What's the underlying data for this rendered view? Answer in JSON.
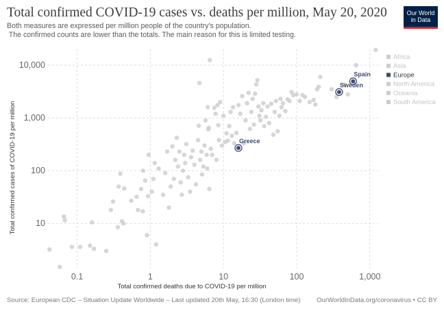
{
  "header": {
    "title": "Total confirmed COVID-19 cases vs. deaths per million, May 20, 2020",
    "subtitle": "Both measures are expressed per million people of the country's population.\n The confirmed counts are lower than the totals. The main reason for this is limited testing.",
    "logo_line1": "Our World",
    "logo_line2": "in Data"
  },
  "footer": {
    "source": "Source: European CDC – Situation Update Worldwide – Last updated 20th May, 16:30 (London time)",
    "credit": "OurWorldInData.org/coronavirus • CC BY"
  },
  "colors": {
    "point": "#cfcfcf",
    "highlight": "#3e4a6e",
    "legend_dim": "#cccccc",
    "grid": "#dddddd"
  },
  "chart_data": {
    "type": "scatter",
    "title": "Total confirmed COVID-19 cases vs. deaths per million, May 20, 2020",
    "xlabel": "Total confirmed deaths due to COVID-19 per million",
    "ylabel": "Total confirmed cases of COVID-19 per million",
    "xscale": "log",
    "yscale": "log",
    "xlim": [
      0.04,
      1300
    ],
    "ylim": [
      1.4,
      20000
    ],
    "x_ticks": [
      0.1,
      1,
      10,
      100,
      1000
    ],
    "x_tick_labels": [
      "0.1",
      "1",
      "10",
      "100",
      "1,000"
    ],
    "y_ticks": [
      10,
      100,
      1000,
      10000
    ],
    "y_tick_labels": [
      "10",
      "100",
      "1,000",
      "10,000"
    ],
    "grid": true,
    "legend_position": "top-right",
    "legend": [
      {
        "label": "Africa",
        "active": false
      },
      {
        "label": "Asia",
        "active": false
      },
      {
        "label": "Europe",
        "active": true
      },
      {
        "label": "North America",
        "active": false
      },
      {
        "label": "Oceania",
        "active": false
      },
      {
        "label": "South America",
        "active": false
      }
    ],
    "highlighted": [
      {
        "name": "Spain",
        "x": 590,
        "y": 4950
      },
      {
        "name": "Sweden",
        "x": 380,
        "y": 3100
      },
      {
        "name": "Greece",
        "x": 16,
        "y": 270
      }
    ],
    "points": [
      [
        0.042,
        3.2
      ],
      [
        0.058,
        1.5
      ],
      [
        0.066,
        13.5
      ],
      [
        0.068,
        11.5
      ],
      [
        0.085,
        3.6
      ],
      [
        0.11,
        3.6
      ],
      [
        0.15,
        3.8
      ],
      [
        0.16,
        10.5
      ],
      [
        0.17,
        3.3
      ],
      [
        0.25,
        3
      ],
      [
        0.29,
        18
      ],
      [
        0.31,
        26
      ],
      [
        0.36,
        8.5
      ],
      [
        0.37,
        50
      ],
      [
        0.39,
        88
      ],
      [
        0.41,
        11
      ],
      [
        0.43,
        10
      ],
      [
        0.44,
        46
      ],
      [
        0.55,
        27
      ],
      [
        0.65,
        32
      ],
      [
        0.68,
        18
      ],
      [
        0.75,
        45
      ],
      [
        0.79,
        17
      ],
      [
        0.8,
        100
      ],
      [
        0.85,
        65
      ],
      [
        0.9,
        6
      ],
      [
        0.93,
        33
      ],
      [
        0.95,
        200
      ],
      [
        1.05,
        40
      ],
      [
        1.1,
        70
      ],
      [
        1.15,
        140
      ],
      [
        1.2,
        4
      ],
      [
        1.3,
        110
      ],
      [
        1.5,
        35
      ],
      [
        1.6,
        90
      ],
      [
        1.7,
        230
      ],
      [
        1.8,
        20
      ],
      [
        1.9,
        50
      ],
      [
        2.0,
        290
      ],
      [
        2.1,
        70
      ],
      [
        2.2,
        160
      ],
      [
        2.3,
        420
      ],
      [
        2.4,
        120
      ],
      [
        2.5,
        230
      ],
      [
        2.6,
        60
      ],
      [
        2.7,
        35
      ],
      [
        2.8,
        100
      ],
      [
        2.9,
        200
      ],
      [
        3.0,
        140
      ],
      [
        3.1,
        320
      ],
      [
        3.3,
        75
      ],
      [
        3.5,
        40
      ],
      [
        3.6,
        180
      ],
      [
        3.8,
        240
      ],
      [
        4.0,
        130
      ],
      [
        4.2,
        55
      ],
      [
        4.5,
        380
      ],
      [
        4.6,
        710
      ],
      [
        4.7,
        4600
      ],
      [
        4.8,
        160
      ],
      [
        5.0,
        230
      ],
      [
        5.1,
        85
      ],
      [
        5.3,
        120
      ],
      [
        5.5,
        300
      ],
      [
        5.7,
        900
      ],
      [
        5.9,
        200
      ],
      [
        6.0,
        110
      ],
      [
        6.1,
        1600
      ],
      [
        6.2,
        610
      ],
      [
        6.3,
        650
      ],
      [
        6.4,
        45
      ],
      [
        6.5,
        12500
      ],
      [
        6.7,
        260
      ],
      [
        7.0,
        200
      ],
      [
        7.5,
        1550
      ],
      [
        7.8,
        1200
      ],
      [
        8.0,
        160
      ],
      [
        8.3,
        1750
      ],
      [
        8.5,
        730
      ],
      [
        8.7,
        380
      ],
      [
        9.0,
        2000
      ],
      [
        9.5,
        300
      ],
      [
        10,
        1100
      ],
      [
        10.5,
        350
      ],
      [
        11,
        510
      ],
      [
        11.5,
        370
      ],
      [
        12,
        700
      ],
      [
        12.5,
        1300
      ],
      [
        13,
        460
      ],
      [
        13.5,
        1600
      ],
      [
        14,
        330
      ],
      [
        15,
        520
      ],
      [
        16,
        1750
      ],
      [
        17,
        1200
      ],
      [
        18,
        2600
      ],
      [
        19,
        330
      ],
      [
        20,
        900
      ],
      [
        21,
        1900
      ],
      [
        22,
        3000
      ],
      [
        23,
        620
      ],
      [
        24,
        1300
      ],
      [
        25,
        2300
      ],
      [
        26,
        750
      ],
      [
        27,
        2900
      ],
      [
        28,
        4300
      ],
      [
        29,
        5200
      ],
      [
        30,
        1650
      ],
      [
        31,
        1100
      ],
      [
        32,
        900
      ],
      [
        33,
        1400
      ],
      [
        35,
        1900
      ],
      [
        36,
        700
      ],
      [
        38,
        1050
      ],
      [
        40,
        1650
      ],
      [
        42,
        800
      ],
      [
        45,
        1850
      ],
      [
        48,
        480
      ],
      [
        50,
        1300
      ],
      [
        52,
        2100
      ],
      [
        55,
        560
      ],
      [
        58,
        1100
      ],
      [
        60,
        2300
      ],
      [
        62,
        1600
      ],
      [
        65,
        1900
      ],
      [
        70,
        1350
      ],
      [
        75,
        2250
      ],
      [
        80,
        2100
      ],
      [
        85,
        3100
      ],
      [
        90,
        2700
      ],
      [
        100,
        2800
      ],
      [
        110,
        2100
      ],
      [
        120,
        2700
      ],
      [
        130,
        2500
      ],
      [
        150,
        2000
      ],
      [
        170,
        2200
      ],
      [
        180,
        1800
      ],
      [
        190,
        3500
      ],
      [
        200,
        3900
      ],
      [
        210,
        6000
      ],
      [
        300,
        3500
      ],
      [
        350,
        2500
      ],
      [
        450,
        4300
      ],
      [
        500,
        2800
      ],
      [
        650,
        10000
      ],
      [
        1200,
        19500
      ]
    ]
  }
}
